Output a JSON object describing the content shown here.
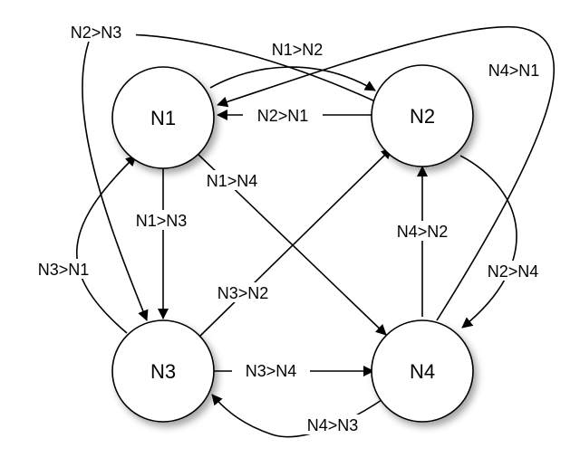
{
  "diagram": {
    "nodes": [
      {
        "id": "N1",
        "label": "N1"
      },
      {
        "id": "N2",
        "label": "N2"
      },
      {
        "id": "N3",
        "label": "N3"
      },
      {
        "id": "N4",
        "label": "N4"
      }
    ],
    "edges": [
      {
        "id": "n1-n2",
        "from": "N1",
        "to": "N2",
        "label": "N1>N2"
      },
      {
        "id": "n2-n1",
        "from": "N2",
        "to": "N1",
        "label": "N2>N1"
      },
      {
        "id": "n1-n3",
        "from": "N1",
        "to": "N3",
        "label": "N1>N3"
      },
      {
        "id": "n3-n1",
        "from": "N3",
        "to": "N1",
        "label": "N3>N1"
      },
      {
        "id": "n1-n4",
        "from": "N1",
        "to": "N4",
        "label": "N1>N4"
      },
      {
        "id": "n4-n1",
        "from": "N4",
        "to": "N1",
        "label": "N4>N1"
      },
      {
        "id": "n2-n3",
        "from": "N2",
        "to": "N3",
        "label": "N2>N3"
      },
      {
        "id": "n3-n2",
        "from": "N3",
        "to": "N2",
        "label": "N3>N2"
      },
      {
        "id": "n2-n4",
        "from": "N2",
        "to": "N4",
        "label": "N2>N4"
      },
      {
        "id": "n4-n2",
        "from": "N4",
        "to": "N2",
        "label": "N4>N2"
      },
      {
        "id": "n3-n4",
        "from": "N3",
        "to": "N4",
        "label": "N3>N4"
      },
      {
        "id": "n4-n3",
        "from": "N4",
        "to": "N3",
        "label": "N4>N3"
      }
    ]
  }
}
